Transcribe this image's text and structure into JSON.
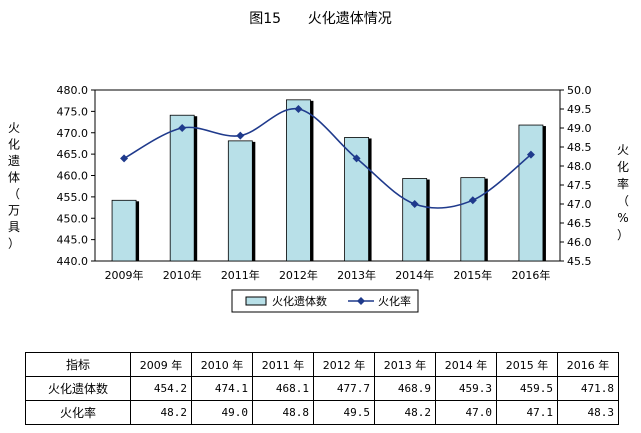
{
  "figure_title": "图15      火化遗体情况",
  "chart_data": {
    "type": "bar",
    "categories": [
      "2009年",
      "2010年",
      "2011年",
      "2012年",
      "2013年",
      "2014年",
      "2015年",
      "2016年"
    ],
    "series": [
      {
        "name": "火化遗体数",
        "type": "bar",
        "axis": "left",
        "color": "#b8e0e8",
        "values": [
          454.2,
          474.1,
          468.1,
          477.7,
          468.9,
          459.3,
          459.5,
          471.8
        ]
      },
      {
        "name": "火化率",
        "type": "line",
        "axis": "right",
        "color": "#1f3a8c",
        "values": [
          48.2,
          49.0,
          48.8,
          49.5,
          48.2,
          47.0,
          47.1,
          48.3
        ]
      }
    ],
    "ylabel": "火化遗体（万具）",
    "y2label": "火化率（%）",
    "ylim": [
      440,
      480
    ],
    "y2lim": [
      45.5,
      50
    ],
    "yticks": [
      "440.0",
      "445.0",
      "450.0",
      "455.0",
      "460.0",
      "465.0",
      "470.0",
      "475.0",
      "480.0"
    ],
    "y2ticks": [
      "45.5",
      "46.0",
      "46.5",
      "47.0",
      "47.5",
      "48.0",
      "48.5",
      "49.0",
      "49.5",
      "50.0"
    ],
    "grid": false,
    "legend": "bottom"
  },
  "table": {
    "header_label": "指标",
    "years": [
      "2009 年",
      "2010 年",
      "2011 年",
      "2012 年",
      "2013 年",
      "2014 年",
      "2015 年",
      "2016 年"
    ],
    "rows": [
      {
        "label": "火化遗体数",
        "values": [
          "454.2",
          "474.1",
          "468.1",
          "477.7",
          "468.9",
          "459.3",
          "459.5",
          "471.8"
        ]
      },
      {
        "label": "火化率",
        "values": [
          "48.2",
          "49.0",
          "48.8",
          "49.5",
          "48.2",
          "47.0",
          "47.1",
          "48.3"
        ]
      }
    ]
  }
}
